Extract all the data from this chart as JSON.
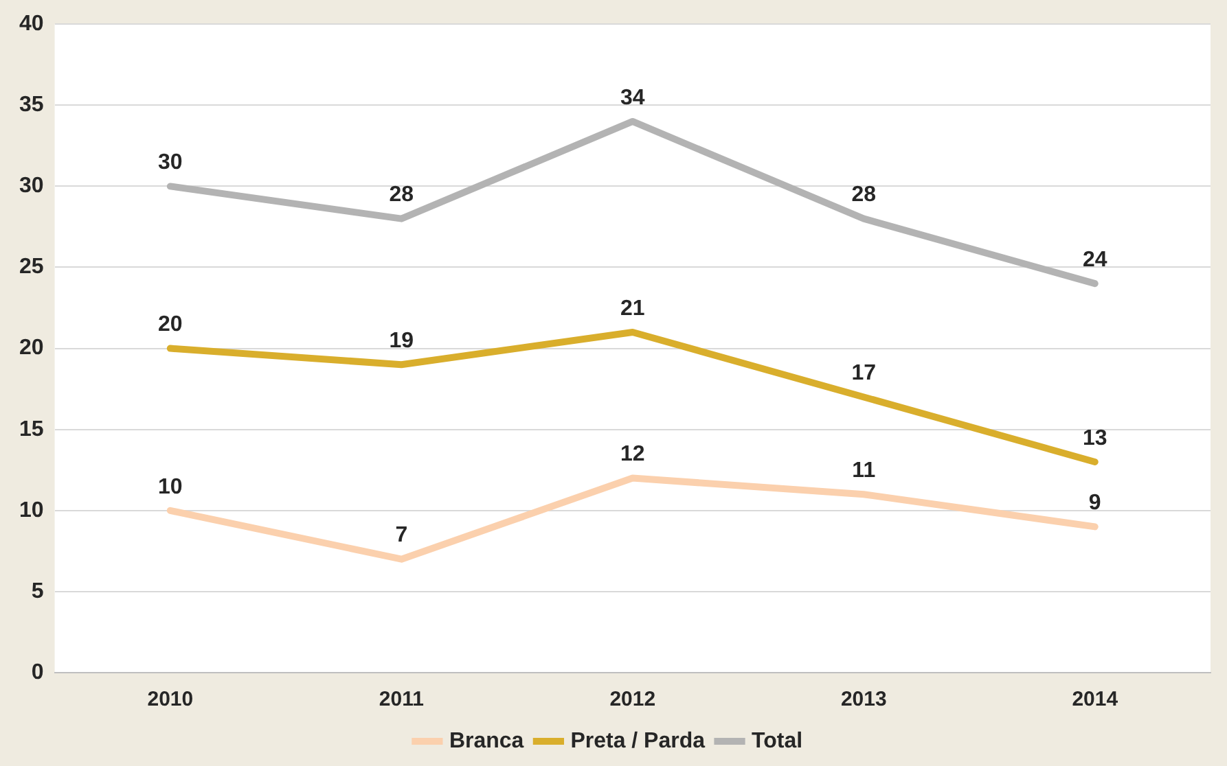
{
  "chart_data": {
    "type": "line",
    "categories": [
      "2010",
      "2011",
      "2012",
      "2013",
      "2014"
    ],
    "series": [
      {
        "name": "Branca",
        "color": "#fbd0ad",
        "values": [
          10,
          7,
          12,
          11,
          9
        ]
      },
      {
        "name": "Preta / Parda",
        "color": "#d9ae2c",
        "values": [
          20,
          19,
          21,
          17,
          13
        ]
      },
      {
        "name": "Total",
        "color": "#b3b3b3",
        "values": [
          30,
          28,
          34,
          28,
          24
        ]
      }
    ],
    "ylim": [
      0,
      40
    ],
    "yticks": [
      0,
      5,
      10,
      15,
      20,
      25,
      30,
      35,
      40
    ],
    "grid": "y",
    "legend": "bottom",
    "data_labels": true,
    "marker": "none"
  }
}
